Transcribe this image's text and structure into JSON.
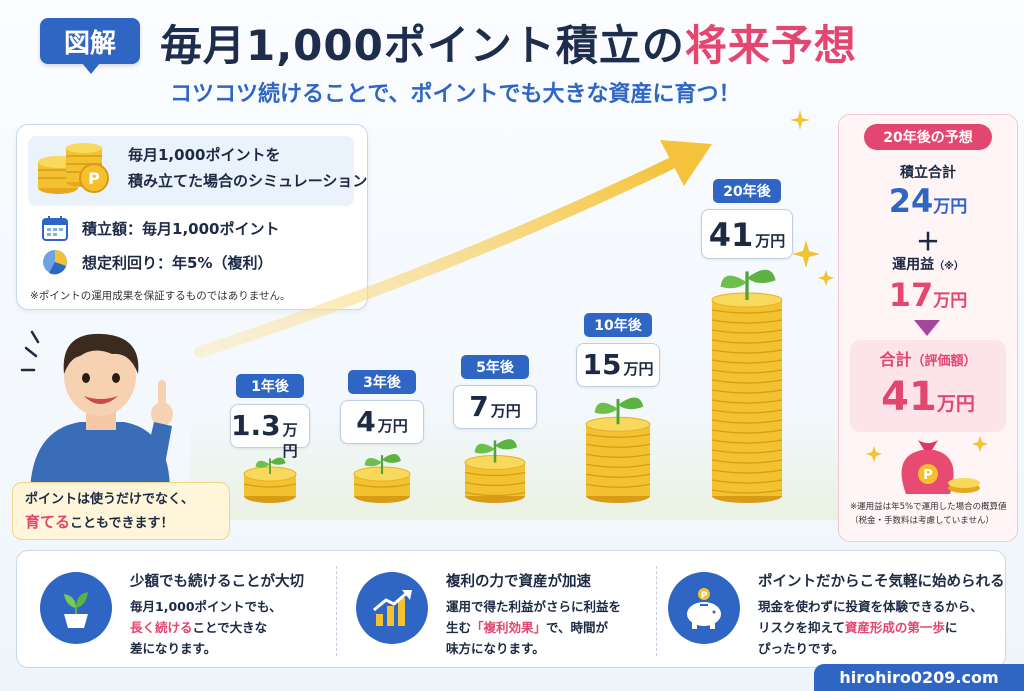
{
  "header": {
    "badge": "図解",
    "title_main": "毎月1,000ポイント積立の",
    "title_accent": "将来予想",
    "subtitle": "コツコツ続けることで、ポイントでも大きな資産に育つ！"
  },
  "info_card": {
    "title_line1": "毎月1,000ポイントを",
    "title_line2": "積み立てた場合のシミュレーション",
    "rows": [
      {
        "icon": "calendar-icon",
        "text": "積立額：毎月1,000ポイント"
      },
      {
        "icon": "pie-chart-icon",
        "text": "想定利回り：年5%（複利）"
      }
    ],
    "note": "※ポイントの運用成果を保証するものではありません。"
  },
  "chart_data": {
    "type": "bar",
    "categories": [
      "1年後",
      "3年後",
      "5年後",
      "10年後",
      "20年後"
    ],
    "values": [
      1.3,
      4,
      7,
      15,
      41
    ],
    "value_labels": [
      "1.3",
      "4",
      "7",
      "15",
      "41"
    ],
    "unit": "万円"
  },
  "speech": {
    "line1": "ポイントは使うだけでなく、",
    "accent": "育てる",
    "line2_rest": "こともできます！"
  },
  "forecast": {
    "tag": "20年後の予想",
    "contrib_label": "積立合計",
    "contrib_value": "24",
    "plus": "＋",
    "gain_label": "運用益",
    "gain_mark": "（※）",
    "gain_value": "17",
    "total_label": "合計",
    "total_sub": "（評価額）",
    "total_value": "41",
    "unit": "万円",
    "note": "※運用益は年5%で運用した場合の概算値（税金・手数料は考慮していません）"
  },
  "features": [
    {
      "icon": "plant-pot-icon",
      "title": "少額でも続けることが大切",
      "line1": "毎月1,000ポイントでも、",
      "accent": "長く続ける",
      "line2_rest": "ことで大きな",
      "line3": "差になります。"
    },
    {
      "icon": "growth-chart-icon",
      "title": "複利の力で資産が加速",
      "line1": "運用で得た利益がさらに利益を",
      "line2_pre": "生む",
      "accent": "「複利効果」",
      "line2_rest": "で、時間が",
      "line3": "味方になります。"
    },
    {
      "icon": "piggy-bank-icon",
      "title": "ポイントだからこそ気軽に始められる",
      "line1": "現金を使わずに投資を体験できるから、",
      "line2_pre": "リスクを抑えて",
      "accent": "資産形成の第一歩",
      "line2_rest": "に",
      "line3": "ぴったりです。"
    }
  ],
  "site": "hirohiro0209.com",
  "colors": {
    "primary": "#2f66c4",
    "accent": "#e3466f",
    "gold": "#f2c230"
  }
}
